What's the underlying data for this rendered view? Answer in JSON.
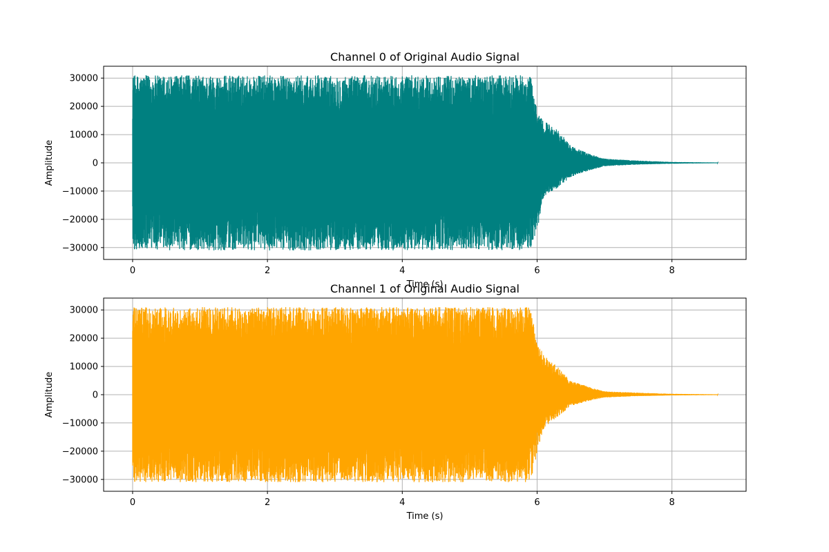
{
  "chart_data": [
    {
      "type": "line",
      "title": "Channel 0 of Original Audio Signal",
      "xlabel": "Time (s)",
      "ylabel": "Amplitude",
      "xlim": [
        -0.43,
        9.1
      ],
      "ylim": [
        -34200,
        34200
      ],
      "xticks": [
        0,
        2,
        4,
        6,
        8
      ],
      "yticks": [
        -30000,
        -20000,
        -10000,
        0,
        10000,
        20000,
        30000
      ],
      "xtick_labels": [
        "0",
        "2",
        "4",
        "6",
        "8"
      ],
      "ytick_labels": [
        "−30000",
        "−20000",
        "−10000",
        "0",
        "10000",
        "20000",
        "30000"
      ],
      "grid": true,
      "color": "#008080",
      "duration": 8.68,
      "envelope_x": [
        0,
        0.3,
        0.6,
        1.0,
        1.5,
        2.0,
        2.5,
        3.0,
        3.5,
        4.0,
        4.5,
        5.0,
        5.5,
        5.9,
        6.0,
        6.1,
        6.3,
        6.5,
        6.8,
        7.0,
        7.5,
        8.0,
        8.68
      ],
      "envelope_upper": [
        31000,
        31000,
        31000,
        31000,
        31000,
        31000,
        31000,
        31000,
        31000,
        31000,
        31000,
        31000,
        31000,
        31000,
        19000,
        15000,
        12000,
        6000,
        3000,
        1500,
        800,
        300,
        100
      ],
      "envelope_lower": [
        -31000,
        -31000,
        -31000,
        -31000,
        -31000,
        -31000,
        -31000,
        -31000,
        -31000,
        -31000,
        -31000,
        -31000,
        -31000,
        -31000,
        -24000,
        -12000,
        -9000,
        -5000,
        -2500,
        -1200,
        -600,
        -300,
        -100
      ]
    },
    {
      "type": "line",
      "title": "Channel 1 of Original Audio Signal",
      "xlabel": "Time (s)",
      "ylabel": "Amplitude",
      "xlim": [
        -0.43,
        9.1
      ],
      "ylim": [
        -34200,
        34200
      ],
      "xticks": [
        0,
        2,
        4,
        6,
        8
      ],
      "yticks": [
        -30000,
        -20000,
        -10000,
        0,
        10000,
        20000,
        30000
      ],
      "xtick_labels": [
        "0",
        "2",
        "4",
        "6",
        "8"
      ],
      "ytick_labels": [
        "−30000",
        "−20000",
        "−10000",
        "0",
        "10000",
        "20000",
        "30000"
      ],
      "grid": true,
      "color": "#FFA500",
      "duration": 8.68,
      "envelope_x": [
        0,
        0.3,
        0.6,
        1.0,
        1.5,
        2.0,
        2.5,
        3.0,
        3.5,
        4.0,
        4.5,
        5.0,
        5.5,
        5.9,
        6.0,
        6.1,
        6.3,
        6.5,
        6.8,
        7.0,
        7.5,
        8.0,
        8.68
      ],
      "envelope_upper": [
        31000,
        31000,
        31000,
        31000,
        31000,
        31000,
        31000,
        31000,
        31000,
        31000,
        31000,
        31000,
        31000,
        31000,
        19000,
        14000,
        10000,
        5000,
        2500,
        1200,
        700,
        300,
        100
      ],
      "envelope_lower": [
        -31000,
        -31000,
        -31000,
        -31000,
        -31000,
        -31000,
        -31000,
        -31000,
        -31000,
        -31000,
        -31000,
        -31000,
        -31000,
        -31000,
        -21000,
        -12000,
        -8000,
        -4000,
        -2000,
        -1000,
        -500,
        -250,
        -100
      ]
    }
  ]
}
